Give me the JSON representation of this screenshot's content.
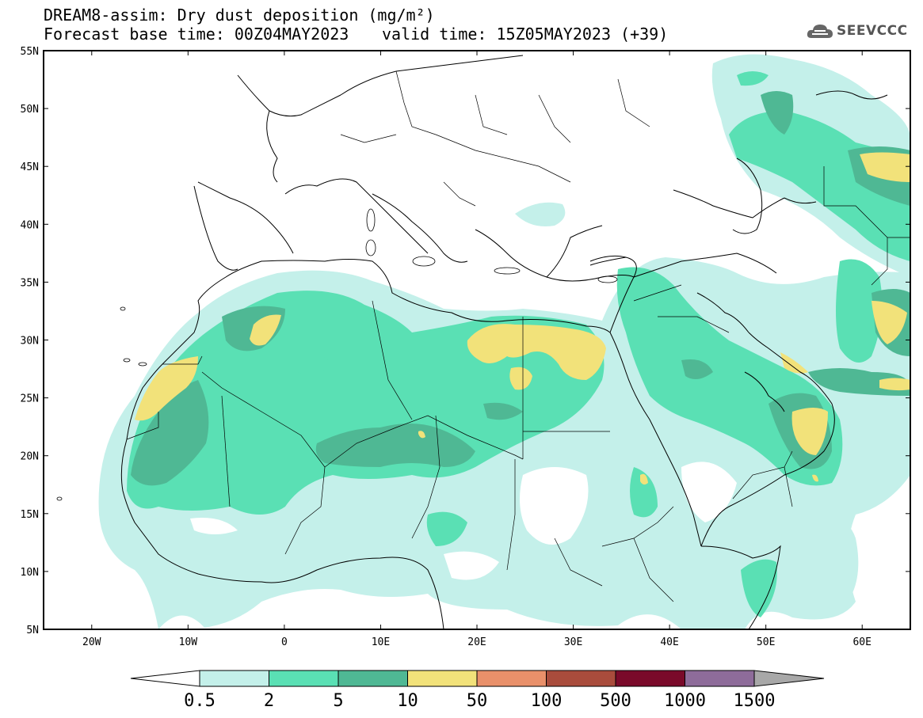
{
  "title": {
    "line1": "DREAM8-assim: Dry dust deposition (mg/m²)",
    "line2_left": "Forecast base time: 00Z04MAY2023",
    "line2_right": "valid time: 15Z05MAY2023 (+39)"
  },
  "logo": {
    "text": "SEEVCCC",
    "icon": "cloud-logo-icon"
  },
  "map": {
    "lon_range": [
      -25,
      65
    ],
    "lat_range": [
      5,
      55
    ],
    "lat_ticks": [
      {
        "value": 55,
        "label": "55N"
      },
      {
        "value": 50,
        "label": "50N"
      },
      {
        "value": 45,
        "label": "45N"
      },
      {
        "value": 40,
        "label": "40N"
      },
      {
        "value": 35,
        "label": "35N"
      },
      {
        "value": 30,
        "label": "30N"
      },
      {
        "value": 25,
        "label": "25N"
      },
      {
        "value": 20,
        "label": "20N"
      },
      {
        "value": 15,
        "label": "15N"
      },
      {
        "value": 10,
        "label": "10N"
      },
      {
        "value": 5,
        "label": "5N"
      }
    ],
    "lon_ticks": [
      {
        "value": -20,
        "label": "20W"
      },
      {
        "value": -10,
        "label": "10W"
      },
      {
        "value": 0,
        "label": "0"
      },
      {
        "value": 10,
        "label": "10E"
      },
      {
        "value": 20,
        "label": "20E"
      },
      {
        "value": 30,
        "label": "30E"
      },
      {
        "value": 40,
        "label": "40E"
      },
      {
        "value": 50,
        "label": "50E"
      },
      {
        "value": 60,
        "label": "60E"
      }
    ]
  },
  "colorbar": {
    "labels": [
      "0.5",
      "2",
      "5",
      "10",
      "50",
      "100",
      "500",
      "1000",
      "1500"
    ],
    "colors": [
      "#c4f0ea",
      "#5ae0b4",
      "#4fb894",
      "#f2e27a",
      "#e9906a",
      "#a94c3c",
      "#7a0a2a",
      "#8e6c9a"
    ],
    "under_color": "#ffffff",
    "over_color": "#a8a8a8"
  },
  "legend_colors": {
    "band_0_5": "#c4f0ea",
    "band_2": "#5ae0b4",
    "band_5": "#4fb894",
    "band_10": "#f2e27a"
  }
}
